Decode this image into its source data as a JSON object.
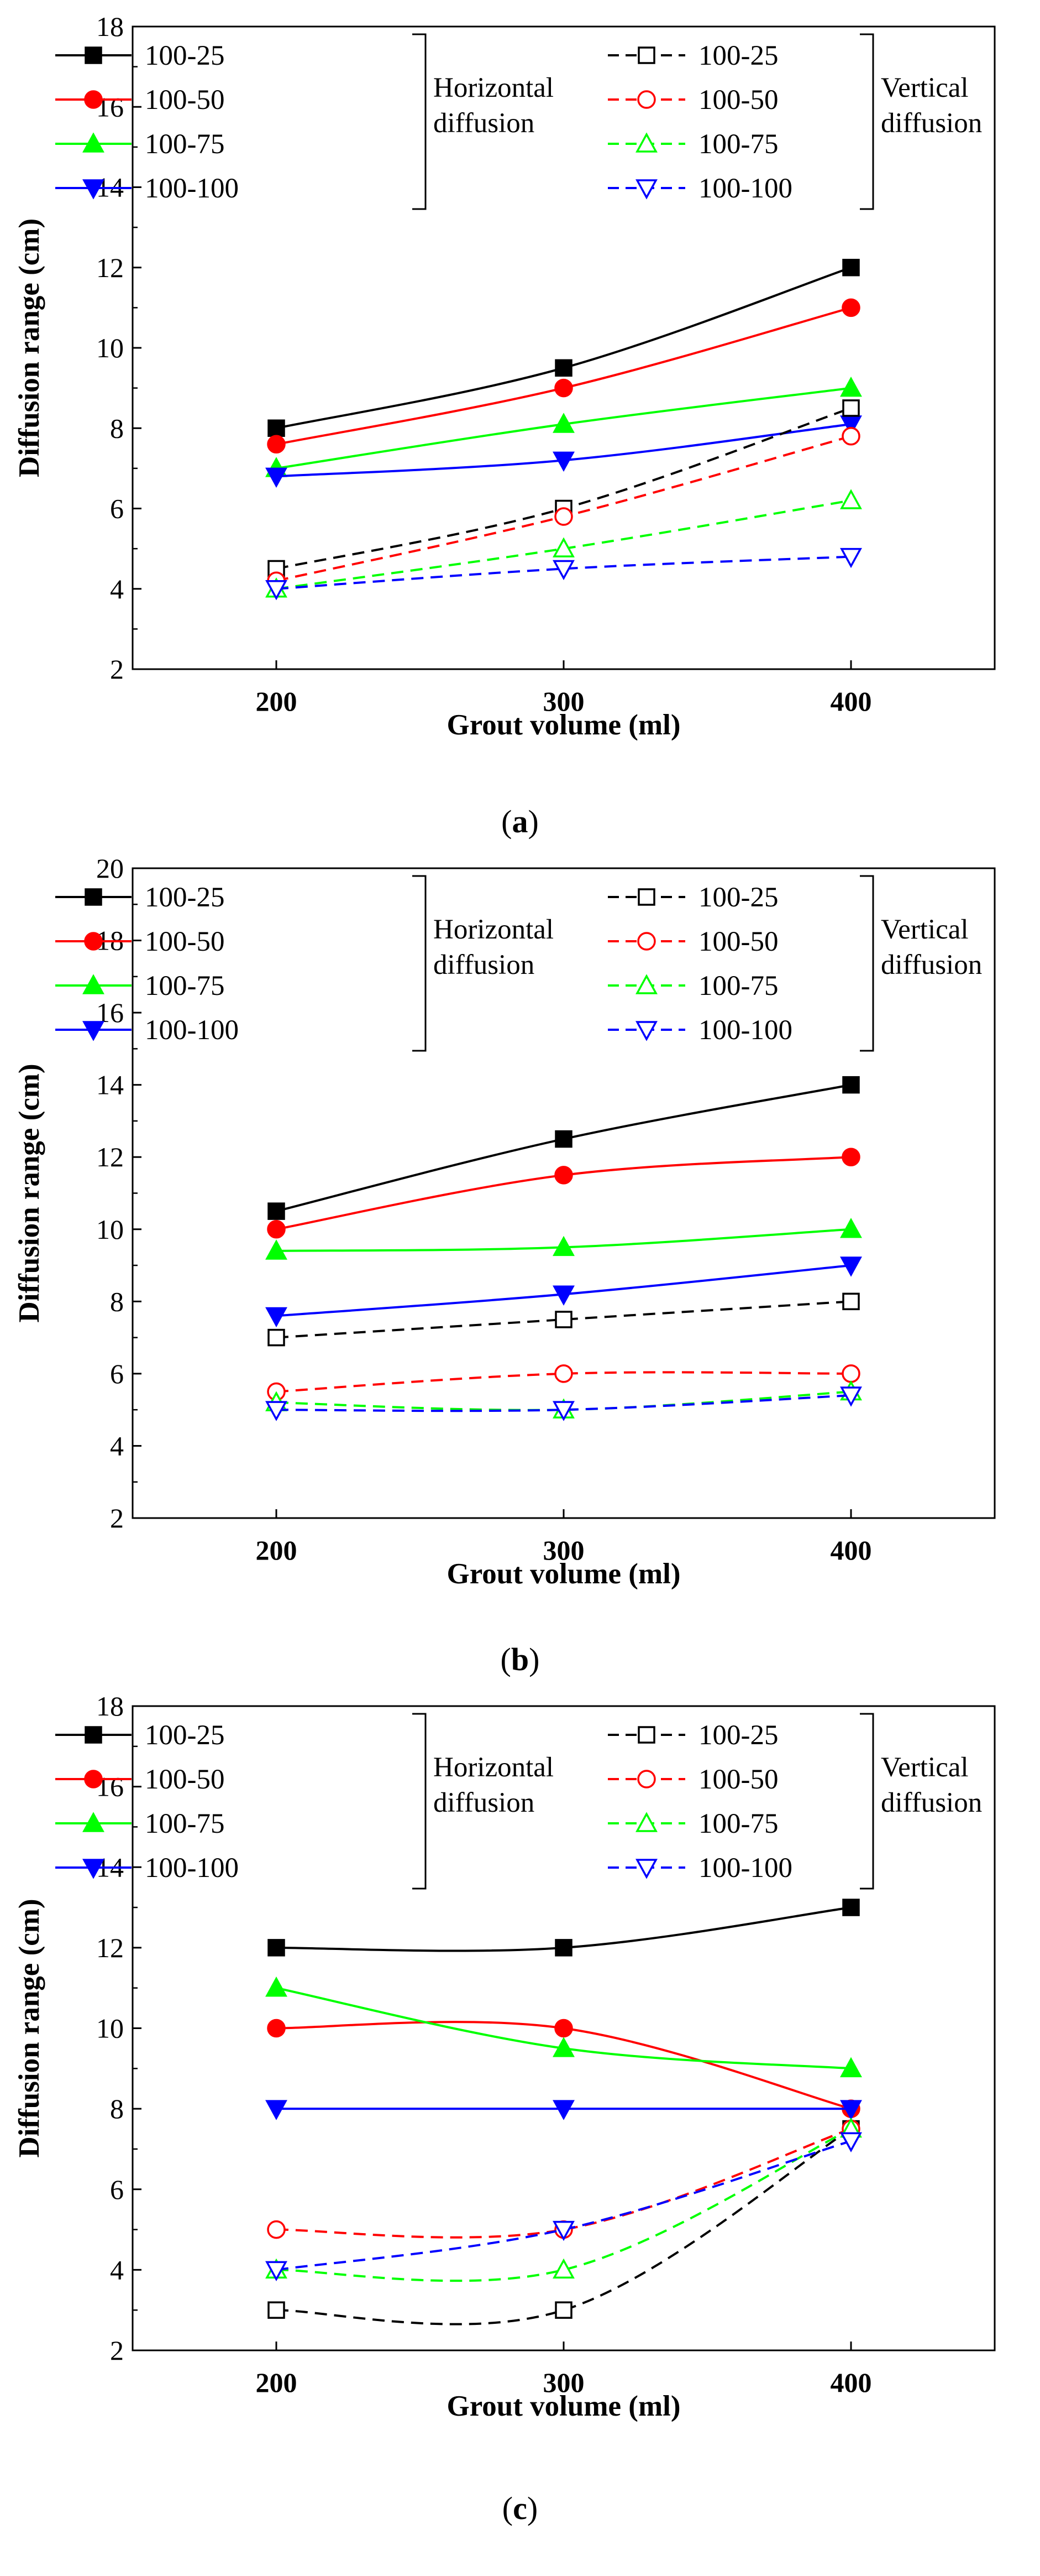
{
  "chart_data": [
    {
      "type": "line",
      "panel_label": "a",
      "xlabel": "Grout volume (ml)",
      "ylabel": "Diffusion range (cm)",
      "x": [
        200,
        300,
        400
      ],
      "xlim": [
        150,
        450
      ],
      "ylim": [
        2,
        18
      ],
      "yticks": [
        2,
        4,
        6,
        8,
        10,
        12,
        14,
        16,
        18
      ],
      "grid": false,
      "legend_groups": [
        "Horizontal diffusion",
        "Vertical diffusion"
      ],
      "series": [
        {
          "name": "100-25",
          "group": "Horizontal diffusion",
          "color": "#000000",
          "marker": "square",
          "filled": true,
          "dashed": false,
          "values": [
            8.0,
            9.5,
            12.0
          ]
        },
        {
          "name": "100-50",
          "group": "Horizontal diffusion",
          "color": "#ff0000",
          "marker": "circle",
          "filled": true,
          "dashed": false,
          "values": [
            7.6,
            9.0,
            11.0
          ]
        },
        {
          "name": "100-75",
          "group": "Horizontal diffusion",
          "color": "#00ff00",
          "marker": "triangle-up",
          "filled": true,
          "dashed": false,
          "values": [
            7.0,
            8.1,
            9.0
          ]
        },
        {
          "name": "100-100",
          "group": "Horizontal diffusion",
          "color": "#0000ff",
          "marker": "triangle-down",
          "filled": true,
          "dashed": false,
          "values": [
            6.8,
            7.2,
            8.1
          ]
        },
        {
          "name": "100-25",
          "group": "Vertical diffusion",
          "color": "#000000",
          "marker": "square",
          "filled": false,
          "dashed": true,
          "values": [
            4.5,
            6.0,
            8.5
          ]
        },
        {
          "name": "100-50",
          "group": "Vertical diffusion",
          "color": "#ff0000",
          "marker": "circle",
          "filled": false,
          "dashed": true,
          "values": [
            4.2,
            5.8,
            7.8
          ]
        },
        {
          "name": "100-75",
          "group": "Vertical diffusion",
          "color": "#00ff00",
          "marker": "triangle-up",
          "filled": false,
          "dashed": true,
          "values": [
            4.0,
            5.0,
            6.2
          ]
        },
        {
          "name": "100-100",
          "group": "Vertical diffusion",
          "color": "#0000ff",
          "marker": "triangle-down",
          "filled": false,
          "dashed": true,
          "values": [
            4.0,
            4.5,
            4.8
          ]
        }
      ]
    },
    {
      "type": "line",
      "panel_label": "b",
      "xlabel": "Grout volume (ml)",
      "ylabel": "Diffusion range (cm)",
      "x": [
        200,
        300,
        400
      ],
      "xlim": [
        150,
        450
      ],
      "ylim": [
        2,
        20
      ],
      "yticks": [
        2,
        4,
        6,
        8,
        10,
        12,
        14,
        16,
        18,
        20
      ],
      "grid": false,
      "legend_groups": [
        "Horizontal diffusion",
        "Vertical diffusion"
      ],
      "series": [
        {
          "name": "100-25",
          "group": "Horizontal diffusion",
          "color": "#000000",
          "marker": "square",
          "filled": true,
          "dashed": false,
          "values": [
            10.5,
            12.5,
            14.0
          ]
        },
        {
          "name": "100-50",
          "group": "Horizontal diffusion",
          "color": "#ff0000",
          "marker": "circle",
          "filled": true,
          "dashed": false,
          "values": [
            10.0,
            11.5,
            12.0
          ]
        },
        {
          "name": "100-75",
          "group": "Horizontal diffusion",
          "color": "#00ff00",
          "marker": "triangle-up",
          "filled": true,
          "dashed": false,
          "values": [
            9.4,
            9.5,
            10.0
          ]
        },
        {
          "name": "100-100",
          "group": "Horizontal diffusion",
          "color": "#0000ff",
          "marker": "triangle-down",
          "filled": true,
          "dashed": false,
          "values": [
            7.6,
            8.2,
            9.0
          ]
        },
        {
          "name": "100-25",
          "group": "Vertical diffusion",
          "color": "#000000",
          "marker": "square",
          "filled": false,
          "dashed": true,
          "values": [
            7.0,
            7.5,
            8.0
          ]
        },
        {
          "name": "100-50",
          "group": "Vertical diffusion",
          "color": "#ff0000",
          "marker": "circle",
          "filled": false,
          "dashed": true,
          "values": [
            5.5,
            6.0,
            6.0
          ]
        },
        {
          "name": "100-75",
          "group": "Vertical diffusion",
          "color": "#00ff00",
          "marker": "triangle-up",
          "filled": false,
          "dashed": true,
          "values": [
            5.2,
            5.0,
            5.5
          ]
        },
        {
          "name": "100-100",
          "group": "Vertical diffusion",
          "color": "#0000ff",
          "marker": "triangle-down",
          "filled": false,
          "dashed": true,
          "values": [
            5.0,
            5.0,
            5.4
          ]
        }
      ]
    },
    {
      "type": "line",
      "panel_label": "c",
      "xlabel": "Grout volume (ml)",
      "ylabel": "Diffusion range (cm)",
      "x": [
        200,
        300,
        400
      ],
      "xlim": [
        150,
        450
      ],
      "ylim": [
        2,
        18
      ],
      "yticks": [
        2,
        4,
        6,
        8,
        10,
        12,
        14,
        16,
        18
      ],
      "grid": false,
      "legend_groups": [
        "Horizontal diffusion",
        "Vertical diffusion"
      ],
      "series": [
        {
          "name": "100-25",
          "group": "Horizontal diffusion",
          "color": "#000000",
          "marker": "square",
          "filled": true,
          "dashed": false,
          "values": [
            12.0,
            12.0,
            13.0
          ]
        },
        {
          "name": "100-50",
          "group": "Horizontal diffusion",
          "color": "#ff0000",
          "marker": "circle",
          "filled": true,
          "dashed": false,
          "values": [
            10.0,
            10.0,
            8.0
          ]
        },
        {
          "name": "100-75",
          "group": "Horizontal diffusion",
          "color": "#00ff00",
          "marker": "triangle-up",
          "filled": true,
          "dashed": false,
          "values": [
            11.0,
            9.5,
            9.0
          ]
        },
        {
          "name": "100-100",
          "group": "Horizontal diffusion",
          "color": "#0000ff",
          "marker": "triangle-down",
          "filled": true,
          "dashed": false,
          "values": [
            8.0,
            8.0,
            8.0
          ]
        },
        {
          "name": "100-25",
          "group": "Vertical diffusion",
          "color": "#000000",
          "marker": "square",
          "filled": false,
          "dashed": true,
          "values": [
            3.0,
            3.0,
            7.5
          ]
        },
        {
          "name": "100-50",
          "group": "Vertical diffusion",
          "color": "#ff0000",
          "marker": "circle",
          "filled": false,
          "dashed": true,
          "values": [
            5.0,
            5.0,
            7.5
          ]
        },
        {
          "name": "100-75",
          "group": "Vertical diffusion",
          "color": "#00ff00",
          "marker": "triangle-up",
          "filled": false,
          "dashed": true,
          "values": [
            4.0,
            4.0,
            7.5
          ]
        },
        {
          "name": "100-100",
          "group": "Vertical diffusion",
          "color": "#0000ff",
          "marker": "triangle-down",
          "filled": false,
          "dashed": true,
          "values": [
            4.0,
            5.0,
            7.2
          ]
        }
      ]
    }
  ]
}
